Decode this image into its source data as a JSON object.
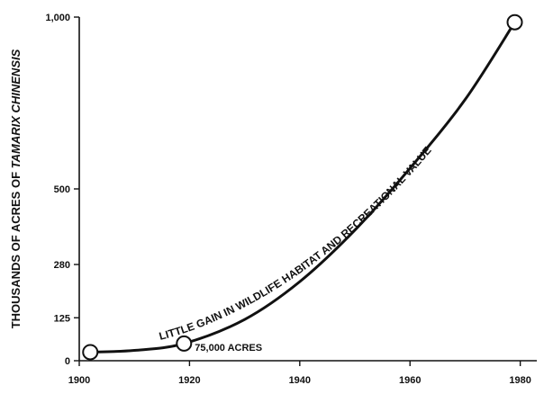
{
  "chart_data": {
    "type": "line",
    "ylabel_prefix": "THOUSANDS OF ACRES OF ",
    "ylabel_species": "TAMARIX CHINENSIS",
    "xlabel": "",
    "x_ticks": [
      1900,
      1920,
      1940,
      1960,
      1980
    ],
    "y_ticks": [
      0,
      125,
      280,
      500,
      1000
    ],
    "y_tick_labels": [
      "0",
      "125",
      "280",
      "500",
      "1,000"
    ],
    "xlim": [
      1900,
      1983
    ],
    "ylim": [
      0,
      1000
    ],
    "grid": false,
    "series": [
      {
        "x": [
          1902,
          1910,
          1919,
          1930,
          1940,
          1950,
          1960,
          1970,
          1979
        ],
        "y": [
          25,
          30,
          50,
          120,
          230,
          380,
          560,
          760,
          985
        ]
      }
    ],
    "markers": [
      {
        "x": 1902,
        "y": 25
      },
      {
        "x": 1919,
        "y": 50
      },
      {
        "x": 1979,
        "y": 985
      }
    ],
    "annotations": {
      "curve_text": "LITTLE GAIN IN WILDLIFE HABITAT AND RECREATIONAL VALUE",
      "point_label": "75,000 ACRES"
    }
  }
}
